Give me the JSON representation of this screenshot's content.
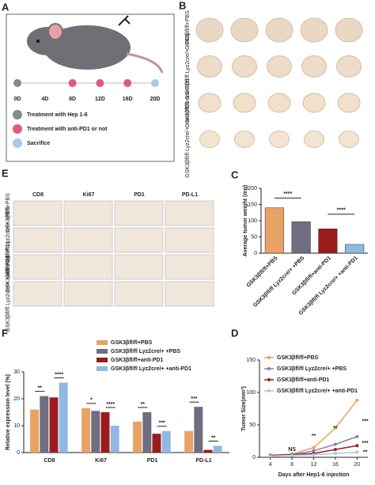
{
  "panel_labels": [
    "A",
    "B",
    "E",
    "C",
    "F",
    "D"
  ],
  "timeline": {
    "days": [
      "0D",
      "4D",
      "8D",
      "12D",
      "16D",
      "20D"
    ],
    "legend": [
      "Treatment with Hep 1-6",
      "Treatment with anti-PD1 or not",
      "Sacrifice"
    ]
  },
  "tumor_rows": [
    "GSK3βfl/fl+PBS",
    "GSK3βfl/fl Lyz2cre/+ +PBS",
    "GSK3βfl/fl+anti-PD1",
    "GSK3βfl/fl Lyz2cre/+ +anti-PD1"
  ],
  "ihc": {
    "columns": [
      "CD8",
      "Ki67",
      "PD1",
      "PD-L1"
    ],
    "rows": [
      "GSK3βfl/fl+PBS",
      "GSK3βfl/fl Lyz2cre/+ +PBS",
      "GSK3βfl/fl +anti-PD1",
      "GSK3βfl/fl Lyz2cre/+ +anti-PD1"
    ]
  },
  "chart_data": [
    {
      "type": "bar",
      "y_label": "Average tumor weight (mg)",
      "categories": [
        "GSK3βfl/fl+PBS",
        "GSK3βfl/fl Lyz2cre/+ +PBS",
        "GSK3βfl/fl+anti-PD1",
        "GSK3βfl/fl Lyz2cre/+ +anti-PD1"
      ],
      "values": [
        140,
        97,
        75,
        27
      ],
      "colors": [
        "#e8a263",
        "#6e6e80",
        "#9b1c1c",
        "#8fb8e2"
      ],
      "ylim": [
        0,
        200
      ],
      "yticks": [
        0,
        50,
        100,
        150,
        200
      ],
      "annotations": [
        "****",
        "****"
      ]
    },
    {
      "type": "grouped_bar",
      "y_label": "Relative expression level (%)",
      "categories": [
        "CD8",
        "Ki67",
        "PD1",
        "PD-L1"
      ],
      "ylim": [
        0,
        30
      ],
      "yticks": [
        0,
        10,
        20,
        30
      ],
      "series": [
        {
          "name": "GSK3βfl/fl+PBS",
          "color": "#e8a263",
          "values": [
            16,
            16.5,
            11.5,
            8
          ]
        },
        {
          "name": "GSK3βfl/fl Lyz2cre/+ +PBS",
          "color": "#6e6e80",
          "values": [
            21,
            15.5,
            15,
            17
          ]
        },
        {
          "name": "GSK3βfl/fl+anti-PD1",
          "color": "#9b1c1c",
          "values": [
            20.5,
            15,
            7,
            1
          ]
        },
        {
          "name": "GSK3βfl/fl Lyz2cre/+ +anti-PD1",
          "color": "#8fb8e2",
          "values": [
            26,
            10,
            8,
            2.5
          ]
        }
      ],
      "annotations": [
        "**",
        "****",
        "*",
        "****",
        "**",
        "***",
        "***",
        "**"
      ]
    },
    {
      "type": "line",
      "x_label": "Days after Hep1-6 injection",
      "y_label": "Tumor Size(mm³)",
      "x": [
        4,
        8,
        12,
        16,
        20
      ],
      "xlim": [
        2,
        22
      ],
      "xticks": [
        4,
        8,
        12,
        16,
        20
      ],
      "ylim": [
        0,
        150
      ],
      "yticks": [
        0,
        50,
        100,
        150
      ],
      "series": [
        {
          "name": "GSK3βfl/fl+PBS",
          "color": "#e8a263",
          "values": [
            3,
            5,
            15,
            45,
            88
          ]
        },
        {
          "name": "GSK3βfl/fl Lyz2cre/+ +PBS",
          "color": "#8a7fb0",
          "values": [
            3,
            4,
            10,
            20,
            32
          ]
        },
        {
          "name": "GSK3βfl/fl+anti-PD1",
          "color": "#9b1c1c",
          "values": [
            3,
            4,
            6,
            12,
            18
          ]
        },
        {
          "name": "GSK3βfl/fl Lyz2cre/+ +anti-PD1",
          "color": "#a9c8ea",
          "values": [
            2,
            3,
            4,
            6,
            8
          ]
        }
      ],
      "annotations": [
        "NS",
        "**",
        "**",
        "***",
        "***",
        "**"
      ]
    }
  ]
}
